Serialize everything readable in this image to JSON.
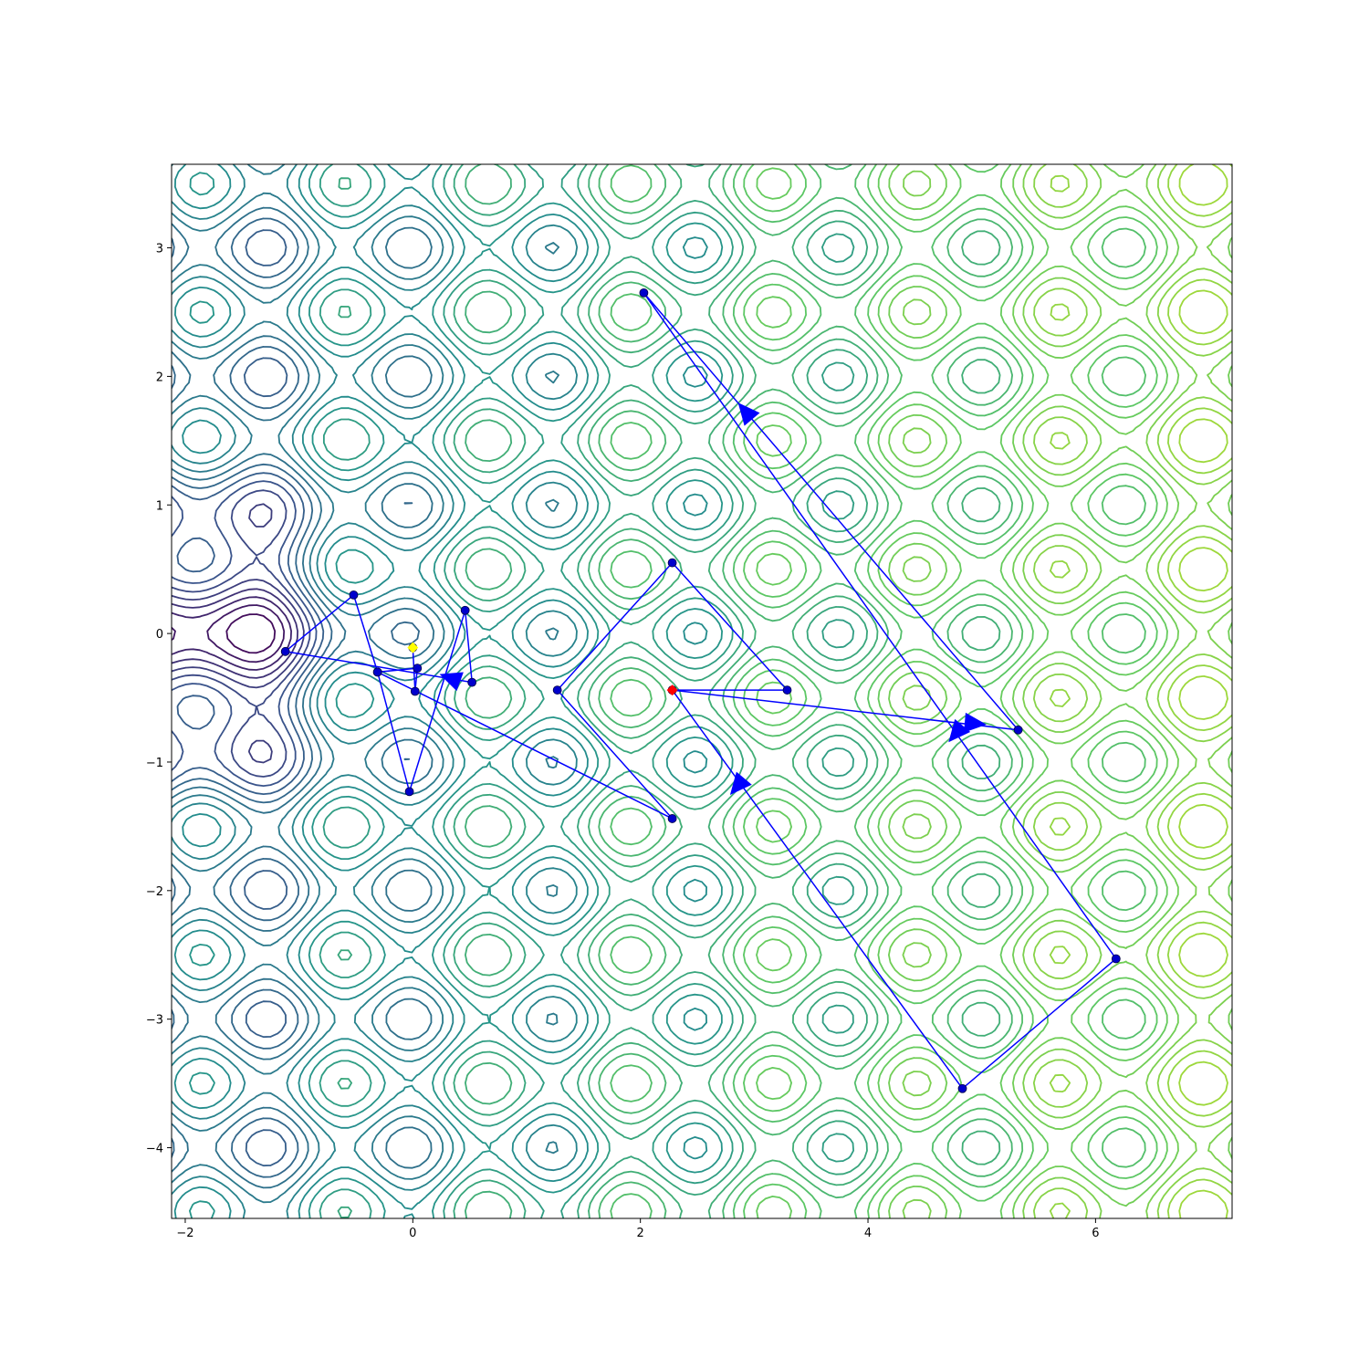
{
  "chart_data": {
    "type": "contour",
    "title": "",
    "xlabel": "",
    "ylabel": "",
    "xlim": [
      -2.12,
      7.2
    ],
    "ylim": [
      -4.55,
      3.65
    ],
    "x_ticks": [
      -2,
      0,
      2,
      4,
      6
    ],
    "x_tick_labels": [
      "−2",
      "0",
      "2",
      "4",
      "6"
    ],
    "y_ticks": [
      -4,
      -3,
      -2,
      -1,
      0,
      1,
      2,
      3
    ],
    "y_tick_labels": [
      "−4",
      "−3",
      "−2",
      "−1",
      "0",
      "1",
      "2",
      "3"
    ],
    "grid": false,
    "colormap": [
      "#440154",
      "#3b528b",
      "#21918c",
      "#5ec962",
      "#a8db34"
    ],
    "path_color": "#0000ff",
    "path": [
      [
        0.0,
        -0.11
      ],
      [
        0.02,
        -0.45
      ],
      [
        0.04,
        -0.27
      ],
      [
        -0.31,
        -0.3
      ],
      [
        -0.52,
        0.3
      ],
      [
        -1.12,
        -0.14
      ],
      [
        0.52,
        -0.38
      ],
      [
        0.46,
        0.18
      ],
      [
        -0.03,
        -1.23
      ],
      [
        -0.31,
        -0.3
      ],
      [
        2.28,
        -1.44
      ],
      [
        1.27,
        -0.44
      ],
      [
        2.28,
        0.55
      ],
      [
        3.29,
        -0.44
      ],
      [
        2.28,
        -0.44
      ],
      [
        5.32,
        -0.75
      ],
      [
        2.03,
        2.65
      ],
      [
        6.18,
        -2.53
      ],
      [
        4.83,
        -3.54
      ],
      [
        2.28,
        -0.44
      ]
    ],
    "start_point": [
      0.0,
      -0.11
    ],
    "start_color": "#ffff00",
    "end_point": [
      2.28,
      -0.44
    ],
    "end_color": "#ff0000",
    "arrows": [
      {
        "x": 0.34,
        "y": -0.35,
        "angle": -160
      },
      {
        "x": 2.93,
        "y": 1.72,
        "angle": -130
      },
      {
        "x": 4.93,
        "y": -0.7,
        "angle": 5
      },
      {
        "x": 4.78,
        "y": -0.77,
        "angle": 130
      },
      {
        "x": 2.86,
        "y": -1.18,
        "angle": 130
      }
    ]
  }
}
